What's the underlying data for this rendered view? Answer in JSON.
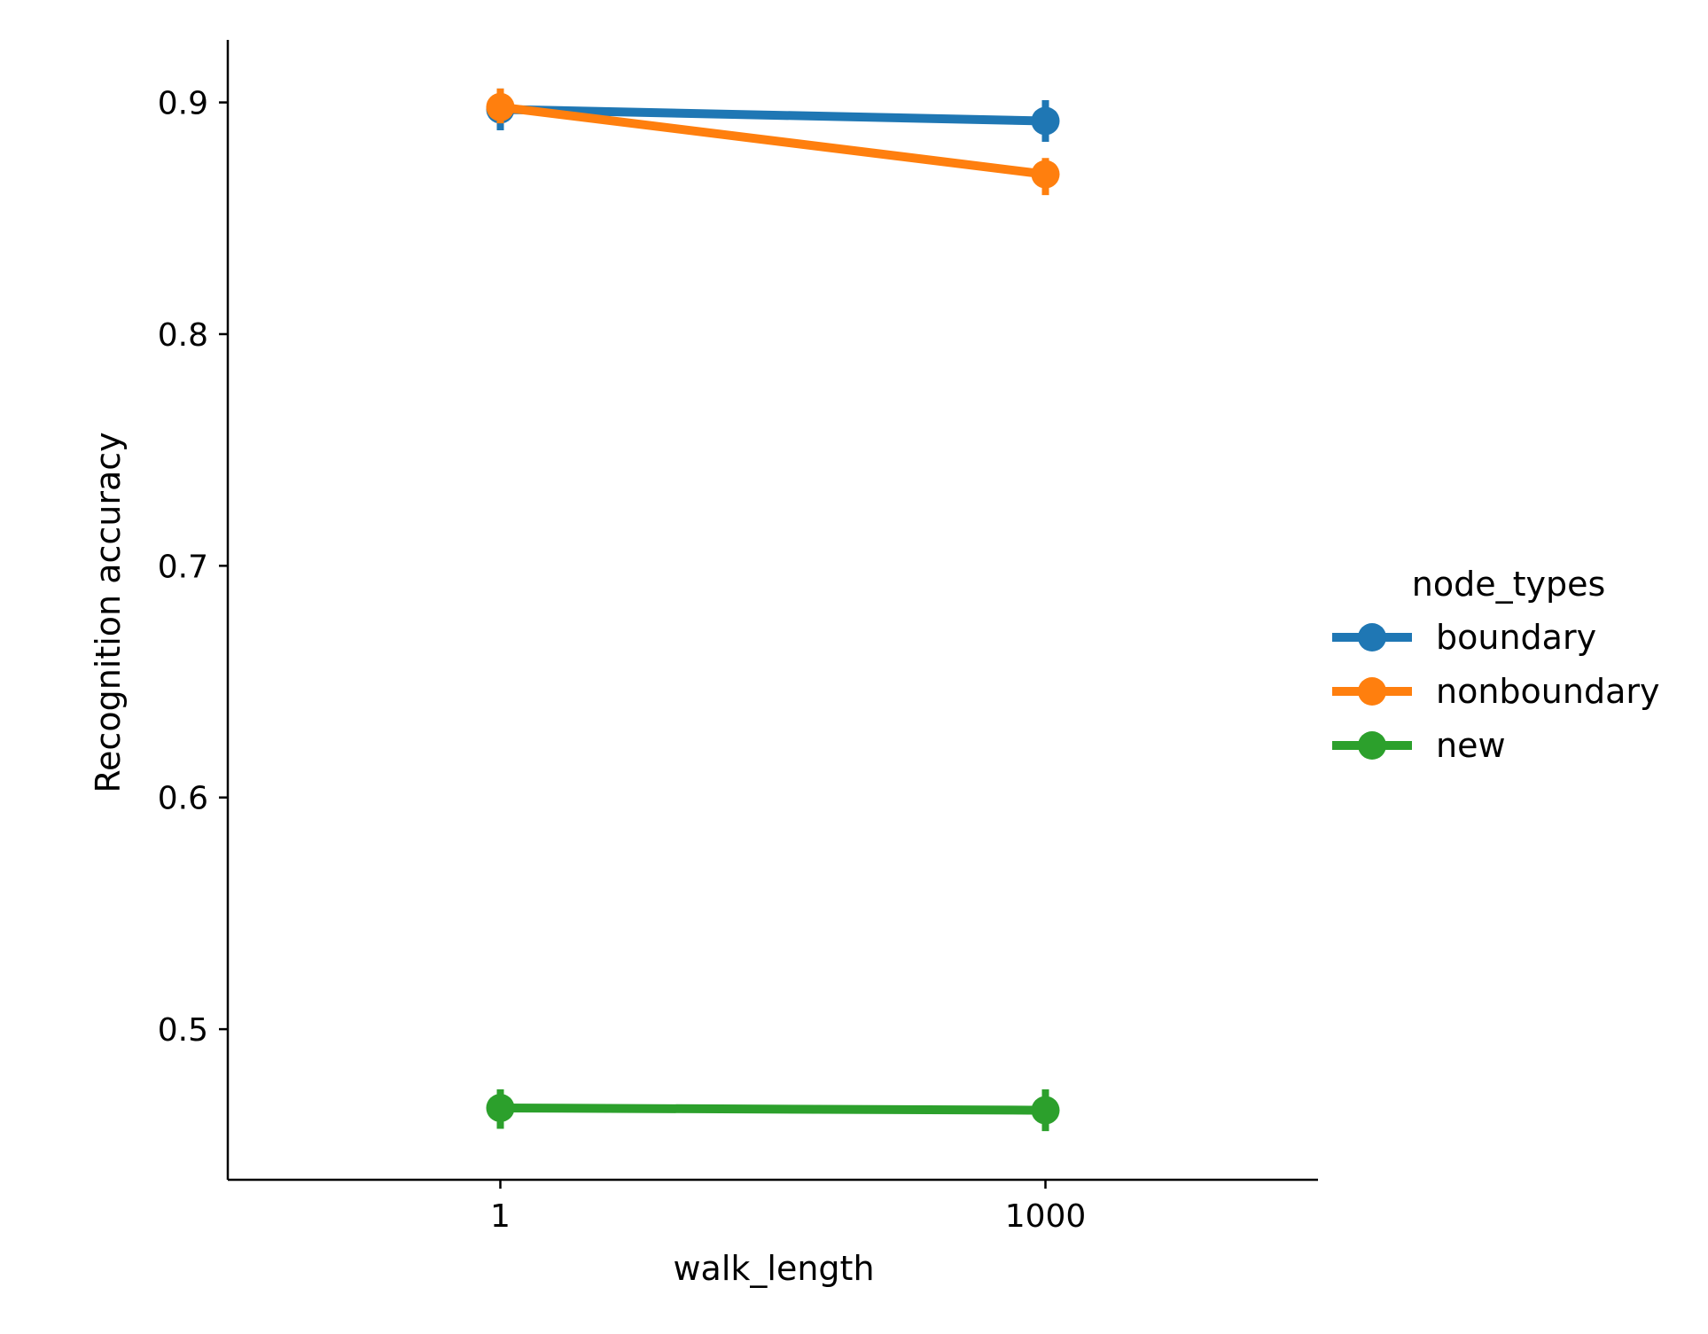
{
  "chart_data": {
    "type": "line",
    "xlabel": "walk_length",
    "ylabel": "Recognition accuracy",
    "categories": [
      "1",
      "1000"
    ],
    "yticks": [
      "0.5",
      "0.6",
      "0.7",
      "0.8",
      "0.9"
    ],
    "ylim": [
      0.435,
      0.927
    ],
    "grid": false,
    "legend": {
      "title": "node_types",
      "position": "right"
    },
    "series": [
      {
        "name": "boundary",
        "color": "#1f77b4",
        "values": [
          0.897,
          0.892
        ],
        "err": [
          [
            0.888,
            0.906
          ],
          [
            0.883,
            0.901
          ]
        ]
      },
      {
        "name": "nonboundary",
        "color": "#ff7f0e",
        "values": [
          0.898,
          0.869
        ],
        "err": [
          [
            0.891,
            0.906
          ],
          [
            0.86,
            0.876
          ]
        ]
      },
      {
        "name": "new",
        "color": "#2ca02c",
        "values": [
          0.466,
          0.465
        ],
        "err": [
          [
            0.457,
            0.474
          ],
          [
            0.456,
            0.474
          ]
        ]
      }
    ]
  }
}
